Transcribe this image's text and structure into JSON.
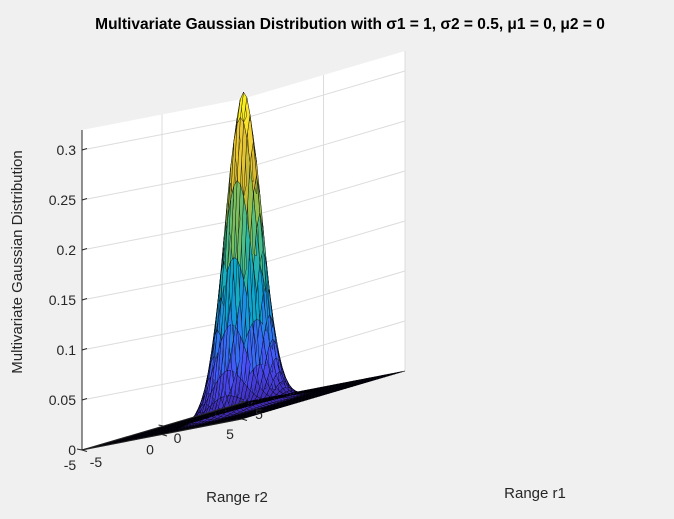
{
  "chart_data": {
    "type": "surface",
    "title": "Multivariate Gaussian Distribution with σ1 = 1, σ2 = 0.5, μ1 = 0, μ2 = 0",
    "xlabel": "Range r1",
    "ylabel": "Range r2",
    "zlabel": "Multivariate Gaussian Distribution",
    "x": {
      "min": -5,
      "max": 5,
      "ticks": [
        -5,
        0,
        5
      ]
    },
    "y": {
      "min": -5,
      "max": 5,
      "ticks": [
        -5,
        0,
        5
      ]
    },
    "z": {
      "min": 0,
      "max": 0.32,
      "ticks": [
        0,
        0.05,
        0.1,
        0.15,
        0.2,
        0.25,
        0.3
      ]
    },
    "params": {
      "sigma1": 1,
      "sigma2": 0.5,
      "mu1": 0,
      "mu2": 0
    },
    "peak": 0.3183,
    "grid": true,
    "colormap": "parula",
    "edgecolor": "#000000",
    "colormap_stops": [
      "#3e26a8",
      "#4a4ffa",
      "#2a7eef",
      "#0ca7cd",
      "#36bd9b",
      "#8cc051",
      "#d9ba30",
      "#fbd93a",
      "#f9fb15"
    ]
  }
}
